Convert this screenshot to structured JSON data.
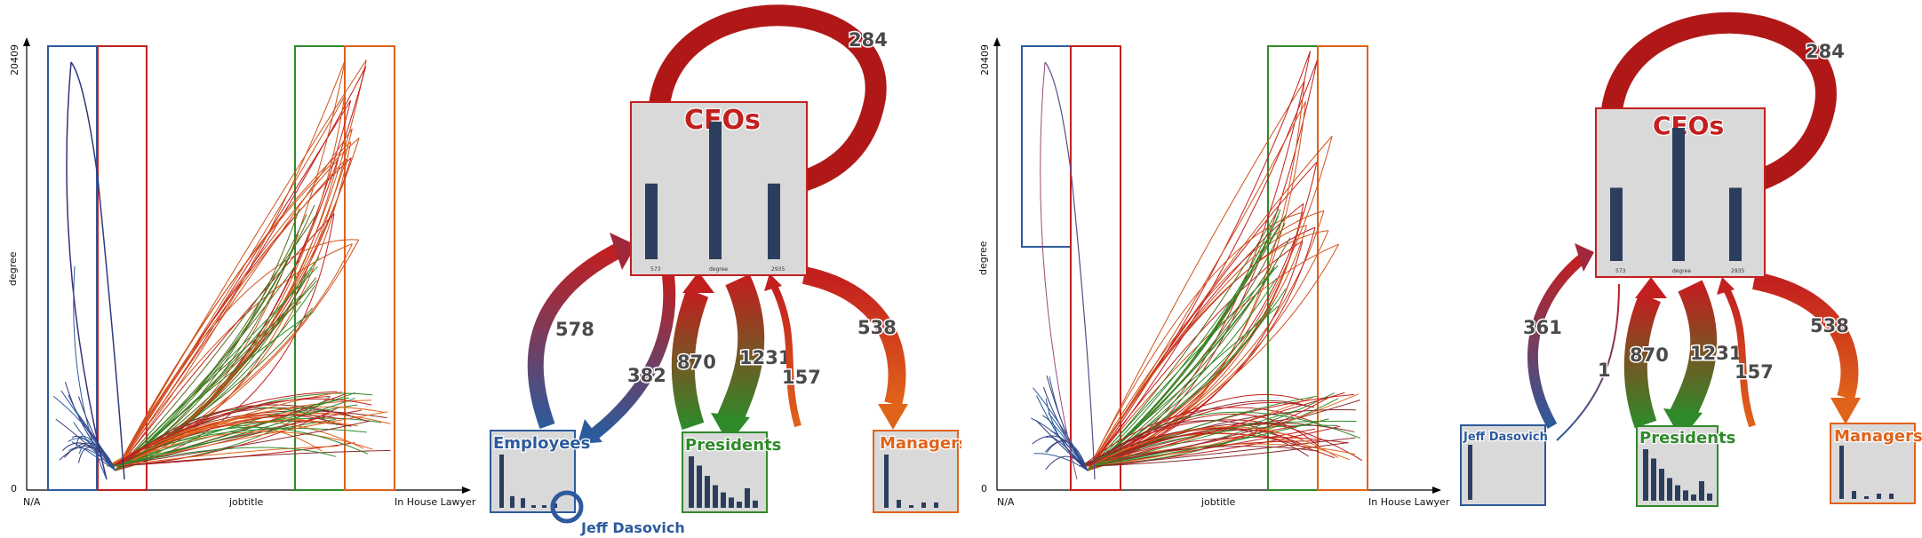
{
  "panels": [
    {
      "id": "p1",
      "scatter": {
        "y_max_label": "20409",
        "y_zero_label": "0",
        "y_axis_label": "degree",
        "x_left_label": "N/A",
        "x_mid_label": "jobtitle",
        "x_right_label": "In House Lawyer"
      },
      "diagram": {
        "center": {
          "label": "CEOs",
          "stat_left": "573",
          "stat_mid": "degree",
          "stat_right": "2935",
          "bars": [
            0.55,
            1.0,
            0.55
          ]
        },
        "self_loop_value": "284",
        "left_node": {
          "label": "Employees",
          "bars": [
            1.0,
            0.22,
            0.18,
            0.05,
            0.05,
            0.08
          ]
        },
        "mid_node": {
          "label": "Presidents",
          "bars": [
            1.0,
            0.82,
            0.62,
            0.44,
            0.3,
            0.2,
            0.12,
            0.38,
            0.14
          ]
        },
        "right_node": {
          "label": "Managers",
          "bars": [
            1.0,
            0.15,
            0.05,
            0.1,
            0.1
          ]
        },
        "edges": {
          "left_up": "578",
          "left_down": "382",
          "mid_up": "870",
          "mid_down": "1231",
          "right_up": "157",
          "right_down": "538"
        },
        "highlight": {
          "label": "Jeff Dasovich"
        }
      }
    },
    {
      "id": "p2",
      "scatter": {
        "y_max_label": "20409",
        "y_zero_label": "0",
        "y_axis_label": "degree",
        "x_left_label": "N/A",
        "x_mid_label": "jobtitle",
        "x_right_label": "In House Lawyer"
      },
      "diagram": {
        "center": {
          "label": "CEOs",
          "stat_left": "573",
          "stat_mid": "degree",
          "stat_right": "2935",
          "bars": [
            0.55,
            1.0,
            0.55
          ]
        },
        "self_loop_value": "284",
        "left_node": {
          "label": "Jeff Dasovich",
          "bars": [
            1.0
          ]
        },
        "mid_node": {
          "label": "Presidents",
          "bars": [
            1.0,
            0.82,
            0.62,
            0.44,
            0.3,
            0.2,
            0.12,
            0.38,
            0.14
          ]
        },
        "right_node": {
          "label": "Managers",
          "bars": [
            1.0,
            0.15,
            0.05,
            0.1,
            0.1
          ]
        },
        "edges": {
          "left_up": "361",
          "left_down": "1",
          "mid_up": "870",
          "mid_down": "1231",
          "right_up": "157",
          "right_down": "538"
        }
      }
    }
  ],
  "colors": {
    "blue": "#2d5a9c",
    "red": "#c21f1f",
    "green": "#2f8a2a",
    "orange": "#e0631a",
    "node_fill": "#d9d9d9",
    "bar": "#2c3e5e"
  }
}
